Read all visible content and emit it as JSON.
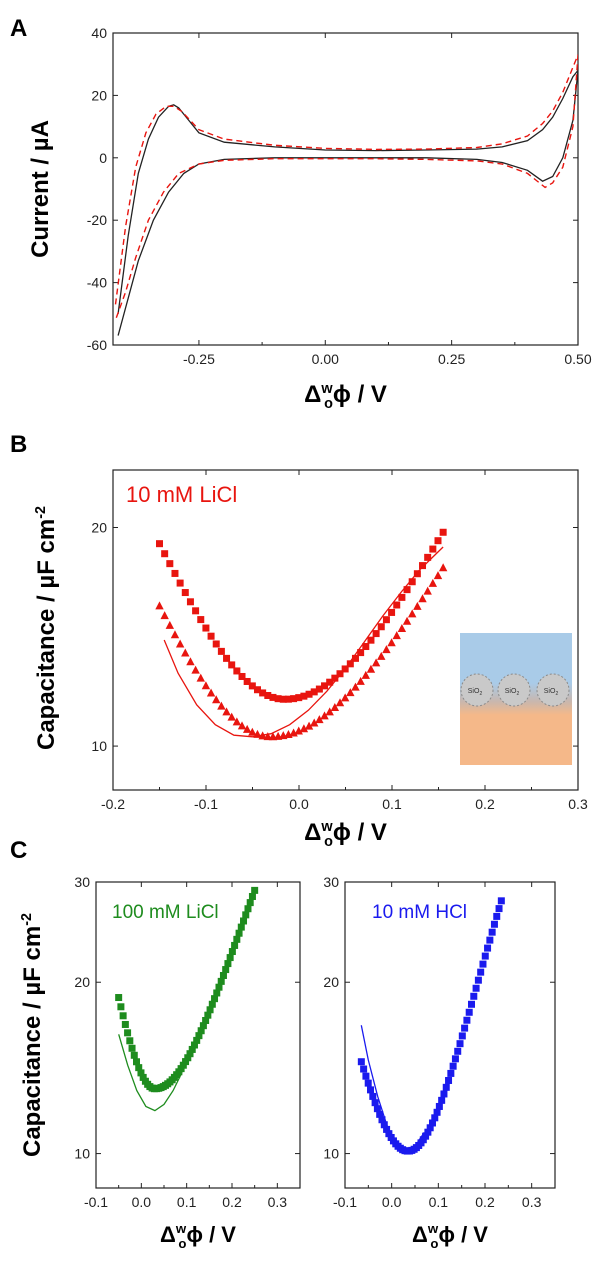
{
  "panels": {
    "a": {
      "letter": "A"
    },
    "b": {
      "letter": "B"
    },
    "c": {
      "letter": "C"
    }
  },
  "colors": {
    "black": "#222222",
    "red": "#e8150f",
    "green": "#1e8c1e",
    "blue": "#1a1aee",
    "dashed_red": "#e8150f"
  },
  "inset": {
    "labels": [
      "SiO",
      "SiO",
      "SiO"
    ],
    "subscripts": [
      "2",
      "2",
      "2"
    ],
    "top_color": "#a9cbe8",
    "bottom_color": "#f5b889"
  },
  "chart_data": [
    {
      "id": "A",
      "type": "line",
      "ylabel": "Current / µA",
      "xlabel_parts": {
        "delta": "Δ",
        "sup": "w",
        "sub": "o",
        "rest": "ϕ / V"
      },
      "xlim": [
        -0.42,
        0.5
      ],
      "ylim": [
        -60,
        40
      ],
      "xticks": [
        -0.25,
        0.0,
        0.25,
        0.5
      ],
      "xtick_labels": [
        "-0.25",
        "0.00",
        "0.25",
        "0.50"
      ],
      "yticks": [
        -60,
        -40,
        -20,
        0,
        20,
        40
      ],
      "ytick_labels": [
        "-60",
        "-40",
        "-20",
        "0",
        "20",
        "40"
      ],
      "series": [
        {
          "style": "solid",
          "color": "#222222",
          "x": [
            -0.41,
            -0.39,
            -0.37,
            -0.35,
            -0.33,
            -0.31,
            -0.3,
            -0.29,
            -0.27,
            -0.25,
            -0.2,
            -0.1,
            0.0,
            0.1,
            0.2,
            0.3,
            0.35,
            0.4,
            0.43,
            0.45,
            0.47,
            0.49,
            0.5,
            0.49,
            0.47,
            0.45,
            0.43,
            0.4,
            0.35,
            0.3,
            0.2,
            0.1,
            0.0,
            -0.1,
            -0.2,
            -0.25,
            -0.28,
            -0.31,
            -0.34,
            -0.37,
            -0.39,
            -0.41
          ],
          "y": [
            -50,
            -25,
            -5,
            6,
            13,
            16.5,
            17,
            16,
            12,
            8,
            5,
            3.5,
            2.5,
            2.3,
            2.5,
            2.8,
            3.5,
            5.5,
            9,
            13,
            19,
            26,
            28,
            12,
            0,
            -6,
            -7.5,
            -4,
            -1.5,
            -0.5,
            0,
            0,
            0,
            0,
            -0.5,
            -2,
            -5,
            -11,
            -20,
            -33,
            -45,
            -57
          ]
        },
        {
          "style": "dashed",
          "color": "#e8150f",
          "x": [
            -0.415,
            -0.395,
            -0.375,
            -0.355,
            -0.335,
            -0.315,
            -0.3,
            -0.285,
            -0.27,
            -0.25,
            -0.2,
            -0.1,
            0.0,
            0.1,
            0.2,
            0.3,
            0.35,
            0.4,
            0.43,
            0.45,
            0.47,
            0.49,
            0.5,
            0.49,
            0.47,
            0.45,
            0.435,
            0.4,
            0.35,
            0.3,
            0.2,
            0.1,
            0.0,
            -0.1,
            -0.2,
            -0.25,
            -0.29,
            -0.32,
            -0.35,
            -0.375,
            -0.395,
            -0.415
          ],
          "y": [
            -47,
            -22,
            -3,
            8,
            14,
            16.5,
            16.5,
            15,
            12.5,
            9,
            6,
            4,
            3,
            2.7,
            2.8,
            3.3,
            4.5,
            7,
            11,
            15,
            21,
            29,
            33,
            10,
            -3,
            -8,
            -9.5,
            -5,
            -2,
            -1,
            -0.5,
            -0.3,
            -0.3,
            -0.3,
            -0.8,
            -2,
            -5,
            -11,
            -20,
            -32,
            -43,
            -52
          ]
        }
      ]
    },
    {
      "id": "B",
      "type": "scatter",
      "annotation": "10 mM LiCl",
      "ylabel_text": "Capacitance / µF cm",
      "ylabel_sup": "-2",
      "xlabel_parts": {
        "delta": "Δ",
        "sup": "w",
        "sub": "o",
        "rest": "ϕ / V"
      },
      "xlim": [
        -0.2,
        0.3
      ],
      "ylim": [
        8.7,
        24
      ],
      "log_y": true,
      "xticks": [
        -0.2,
        -0.1,
        0.0,
        0.1,
        0.2,
        0.3
      ],
      "xtick_labels": [
        "-0.2",
        "-0.1",
        "0.0",
        "0.1",
        "0.2",
        "0.3"
      ],
      "yticks": [
        10,
        20
      ],
      "ytick_labels": [
        "10",
        "20"
      ],
      "series": [
        {
          "marker": "square",
          "color": "#e8150f",
          "x_start": -0.15,
          "x_end": 0.155,
          "n": 56,
          "vertex_x": -0.015,
          "vertex_y": 11.6,
          "y_left": 19.0,
          "y_right": 19.7
        },
        {
          "marker": "triangle",
          "color": "#e8150f",
          "x_start": -0.15,
          "x_end": 0.155,
          "n": 56,
          "vertex_x": -0.03,
          "vertex_y": 10.3,
          "y_left": 15.6,
          "y_right": 17.6
        },
        {
          "marker": "line",
          "color": "#e8150f",
          "x": [
            -0.145,
            -0.13,
            -0.11,
            -0.09,
            -0.07,
            -0.05,
            -0.03,
            -0.01,
            0.01,
            0.03,
            0.05,
            0.07,
            0.09,
            0.11,
            0.13,
            0.155
          ],
          "y": [
            14.0,
            12.6,
            11.4,
            10.7,
            10.35,
            10.3,
            10.4,
            10.7,
            11.2,
            11.9,
            12.8,
            13.9,
            15.1,
            16.3,
            17.5,
            18.8
          ]
        }
      ]
    },
    {
      "id": "C-left",
      "type": "scatter",
      "annotation": "100 mM LiCl",
      "ylabel_text": "Capacitance / µF cm",
      "ylabel_sup": "-2",
      "xlabel_parts": {
        "delta": "Δ",
        "sup": "w",
        "sub": "o",
        "rest": "ϕ / V"
      },
      "xlim": [
        -0.1,
        0.35
      ],
      "ylim": [
        8.7,
        30
      ],
      "log_y": true,
      "xticks": [
        -0.1,
        0.0,
        0.1,
        0.2,
        0.3
      ],
      "xtick_labels": [
        "-0.1",
        "0.0",
        "0.1",
        "0.2",
        "0.3"
      ],
      "yticks": [
        10,
        20,
        30
      ],
      "ytick_labels": [
        "10",
        "20",
        "30"
      ],
      "series": [
        {
          "marker": "square",
          "color": "#1e8c1e",
          "x_start": -0.05,
          "x_end": 0.25,
          "n": 62,
          "vertex_x": 0.03,
          "vertex_y": 13.0,
          "y_left": 18.8,
          "y_right": 29.0
        },
        {
          "marker": "line",
          "color": "#1e8c1e",
          "x": [
            -0.05,
            -0.03,
            -0.01,
            0.01,
            0.03,
            0.05,
            0.07,
            0.09
          ],
          "y": [
            16.2,
            14.3,
            12.9,
            12.1,
            11.9,
            12.2,
            12.9,
            13.9
          ]
        }
      ]
    },
    {
      "id": "C-right",
      "type": "scatter",
      "annotation": "10 mM HCl",
      "xlabel_parts": {
        "delta": "Δ",
        "sup": "w",
        "sub": "o",
        "rest": "ϕ / V"
      },
      "xlim": [
        -0.1,
        0.35
      ],
      "ylim": [
        8.7,
        30
      ],
      "log_y": true,
      "xticks": [
        -0.1,
        0.0,
        0.1,
        0.2,
        0.3
      ],
      "xtick_labels": [
        "-0.1",
        "0.0",
        "0.1",
        "0.2",
        "0.3"
      ],
      "yticks": [
        10,
        20,
        30
      ],
      "ytick_labels": [
        "10",
        "20",
        "30"
      ],
      "series": [
        {
          "marker": "square",
          "color": "#1a1aee",
          "x_start": -0.065,
          "x_end": 0.235,
          "n": 62,
          "vertex_x": 0.035,
          "vertex_y": 10.1,
          "y_left": 14.5,
          "y_right": 27.8
        },
        {
          "marker": "line",
          "color": "#1a1aee",
          "x": [
            -0.065,
            -0.05,
            -0.03,
            -0.01,
            0.01,
            0.03,
            0.05,
            0.07
          ],
          "y": [
            16.8,
            14.6,
            12.6,
            11.2,
            10.4,
            10.1,
            10.3,
            10.9
          ]
        }
      ]
    }
  ]
}
